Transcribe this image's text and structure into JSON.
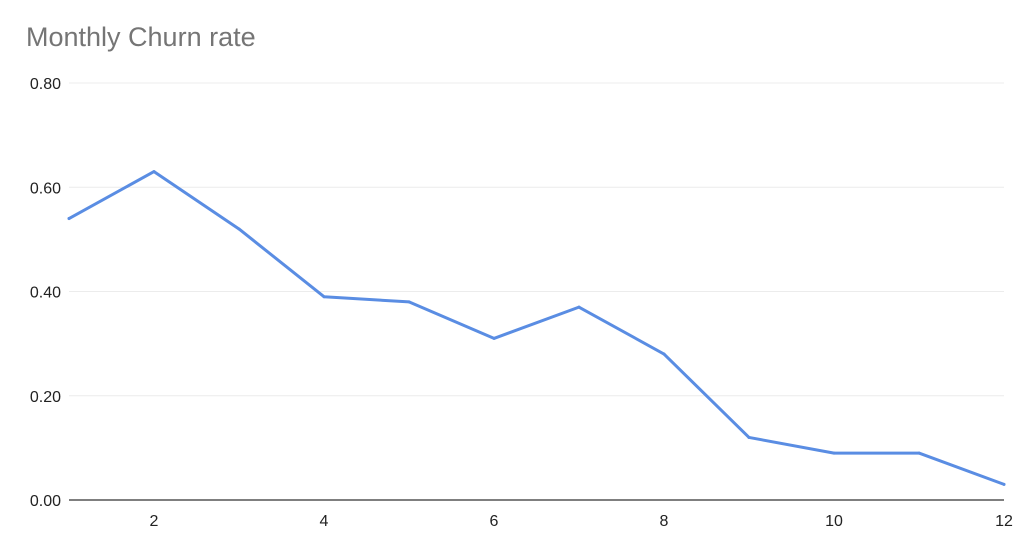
{
  "chart_data": {
    "type": "line",
    "title": "Monthly Churn rate",
    "xlabel": "",
    "ylabel": "",
    "x": [
      1,
      2,
      3,
      4,
      5,
      6,
      7,
      8,
      9,
      10,
      11,
      12
    ],
    "series": [
      {
        "values": [
          0.54,
          0.63,
          0.52,
          0.39,
          0.38,
          0.31,
          0.37,
          0.28,
          0.12,
          0.09,
          0.09,
          0.03
        ],
        "color": "#5a8de3"
      }
    ],
    "xlim": [
      1,
      12
    ],
    "ylim": [
      0,
      0.8
    ],
    "x_ticks": [
      "2",
      "4",
      "6",
      "8",
      "10",
      "12"
    ],
    "y_ticks": [
      "0.00",
      "0.20",
      "0.40",
      "0.60",
      "0.80"
    ],
    "grid": true,
    "gridline_color": "#ececec",
    "axis_color": "#333333",
    "legend": "none"
  }
}
